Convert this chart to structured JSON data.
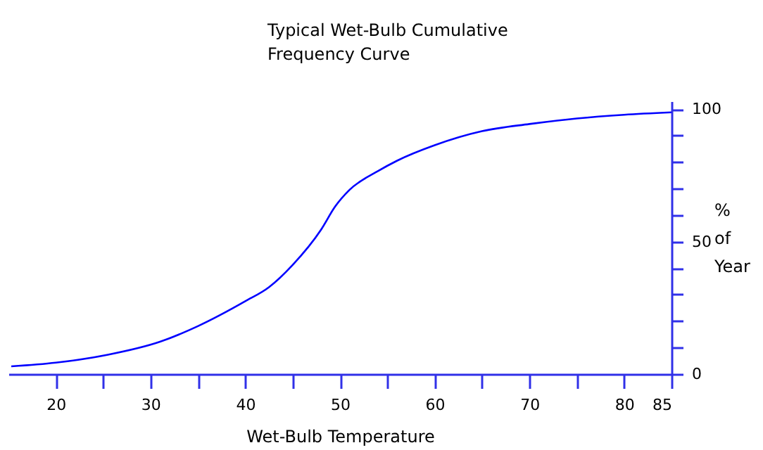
{
  "chart_data": {
    "type": "line",
    "title": "Typical Wet-Bulb Cumulative Frequency Curve",
    "xlabel": "Wet-Bulb Temperature",
    "ylabel": "% of Year",
    "x": [
      15.3,
      20,
      25.5,
      31,
      35,
      40,
      42.5,
      45,
      48,
      49.5,
      51,
      54,
      56,
      60,
      65,
      70,
      75,
      80,
      85
    ],
    "series": [
      {
        "color": "#0000ff",
        "values": [
          2.9,
          4.3,
          7.3,
          12.2,
          18.1,
          27.5,
          32.8,
          41.2,
          54.5,
          63.3,
          69.5,
          76.6,
          80.5,
          86.4,
          91.7,
          94.4,
          96.5,
          97.9,
          98.8
        ]
      }
    ],
    "xlim": [
      15,
      85
    ],
    "xticks": [
      20,
      {
        "value": 25,
        "label": null
      },
      30,
      {
        "value": 35,
        "label": null
      },
      40,
      {
        "value": 45,
        "label": null
      },
      50,
      {
        "value": 55,
        "label": null
      },
      60,
      {
        "value": 65,
        "label": null
      },
      70,
      {
        "value": 75,
        "label": null
      },
      80,
      85
    ],
    "ylim": [
      0,
      103
    ],
    "yticks": [
      0,
      {
        "value": 10,
        "label": null
      },
      {
        "value": 20,
        "label": null
      },
      {
        "value": 30,
        "label": null
      },
      {
        "value": 40,
        "label": null
      },
      50,
      {
        "value": 60,
        "label": null
      },
      {
        "value": 70,
        "label": null
      },
      {
        "value": 80,
        "label": null
      },
      {
        "value": 90,
        "label": null
      },
      100
    ],
    "grid": false,
    "legend": false,
    "marker": "none",
    "line_style": "solid"
  }
}
